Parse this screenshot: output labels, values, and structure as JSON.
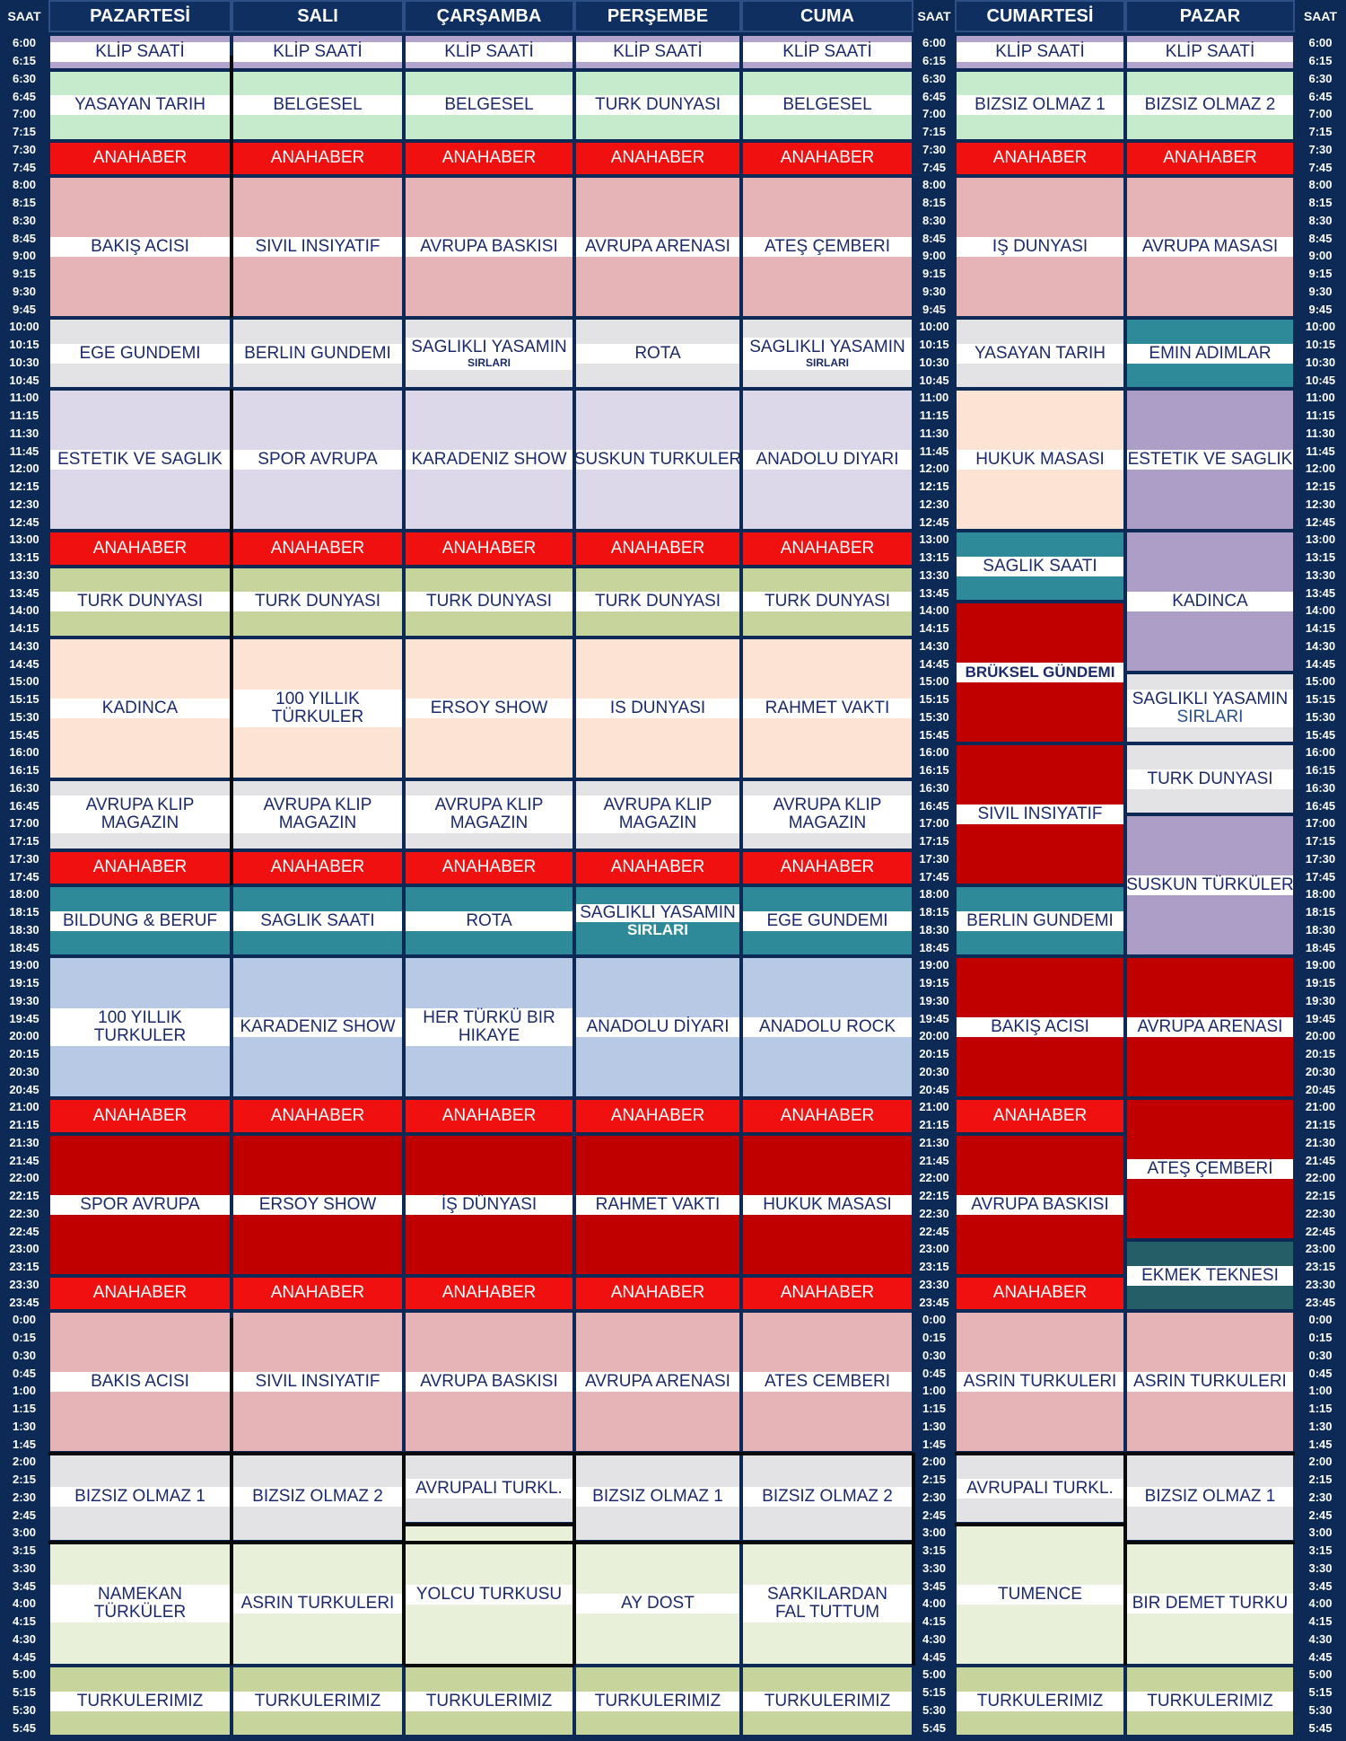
{
  "headers": {
    "saat": "SAAT",
    "days": [
      "PAZARTESİ",
      "SALI",
      "ÇARŞAMBA",
      "PERŞEMBE",
      "CUMA",
      "CUMARTESİ",
      "PAZAR"
    ]
  },
  "times": [
    "6:00",
    "6:15",
    "6:30",
    "6:45",
    "7:00",
    "7:15",
    "7:30",
    "7:45",
    "8:00",
    "8:15",
    "8:30",
    "8:45",
    "9:00",
    "9:15",
    "9:30",
    "9:45",
    "10:00",
    "10:15",
    "10:30",
    "10:45",
    "11:00",
    "11:15",
    "11:30",
    "11:45",
    "12:00",
    "12:15",
    "12:30",
    "12:45",
    "13:00",
    "13:15",
    "13:30",
    "13:45",
    "14:00",
    "14:15",
    "14:30",
    "14:45",
    "15:00",
    "15:15",
    "15:30",
    "15:45",
    "16:00",
    "16:15",
    "16:30",
    "16:45",
    "17:00",
    "17:15",
    "17:30",
    "17:45",
    "18:00",
    "18:15",
    "18:30",
    "18:45",
    "19:00",
    "19:15",
    "19:30",
    "19:45",
    "20:00",
    "20:15",
    "20:30",
    "20:45",
    "21:00",
    "21:15",
    "21:30",
    "21:45",
    "22:00",
    "22:15",
    "22:30",
    "22:45",
    "23:00",
    "23:15",
    "23:30",
    "23:45",
    "0:00",
    "0:15",
    "0:30",
    "0:45",
    "1:00",
    "1:15",
    "1:30",
    "1:45",
    "2:00",
    "2:15",
    "2:30",
    "2:45",
    "3:00",
    "3:15",
    "3:30",
    "3:45",
    "4:00",
    "4:15",
    "4:30",
    "4:45",
    "5:00",
    "5:15",
    "5:30",
    "5:45"
  ],
  "colors": {
    "klip": "#b2a4cc",
    "green": "#c6ebcc",
    "red": "#f01010",
    "pink": "#e6b4b6",
    "grey": "#e3e3e6",
    "lav": "#dcd7e9",
    "peach": "#fce3d3",
    "olive": "#c7d49c",
    "teal": "#2e8a98",
    "blue": "#b7c9e4",
    "dred": "#c00000",
    "cream": "#e9f0d9",
    "purple": "#ad9ec8",
    "dteal": "#1f5f6a",
    "dbteal": "#265e67"
  },
  "schedule": [
    [
      {
        "s": 0,
        "e": 2,
        "c": "klip",
        "t": [
          "KLİP SAATİ"
        ]
      },
      {
        "s": 2,
        "e": 6,
        "c": "green",
        "t": [
          "YASAYAN TARIH"
        ]
      },
      {
        "s": 6,
        "e": 8,
        "c": "red",
        "t": [
          "ANAHABER"
        ]
      },
      {
        "s": 8,
        "e": 16,
        "c": "pink",
        "t": [
          "BAKIŞ ACISI"
        ]
      },
      {
        "s": 16,
        "e": 20,
        "c": "grey",
        "t": [
          "EGE GUNDEMI"
        ]
      },
      {
        "s": 20,
        "e": 28,
        "c": "lav",
        "t": [
          "ESTETIK VE SAGLIK"
        ]
      },
      {
        "s": 28,
        "e": 30,
        "c": "red",
        "t": [
          "ANAHABER"
        ]
      },
      {
        "s": 30,
        "e": 34,
        "c": "olive",
        "t": [
          "TURK DUNYASI"
        ]
      },
      {
        "s": 34,
        "e": 42,
        "c": "peach",
        "t": [
          "KADINCA"
        ]
      },
      {
        "s": 42,
        "e": 46,
        "c": "grey",
        "t": [
          "AVRUPA KLIP",
          "MAGAZIN"
        ]
      },
      {
        "s": 46,
        "e": 48,
        "c": "red",
        "t": [
          "ANAHABER"
        ]
      },
      {
        "s": 48,
        "e": 52,
        "c": "teal",
        "t": [
          "BILDUNG & BERUF"
        ]
      },
      {
        "s": 52,
        "e": 60,
        "c": "blue",
        "t": [
          "100 YILLIK",
          "TURKULER"
        ]
      },
      {
        "s": 60,
        "e": 62,
        "c": "red",
        "t": [
          "ANAHABER"
        ]
      },
      {
        "s": 62,
        "e": 70,
        "c": "dred",
        "t": [
          "SPOR AVRUPA"
        ]
      },
      {
        "s": 70,
        "e": 72,
        "c": "red",
        "t": [
          "ANAHABER"
        ]
      },
      {
        "s": 72,
        "e": 80,
        "c": "pink",
        "t": [
          "BAKIS ACISI"
        ]
      },
      {
        "s": 80,
        "e": 85,
        "c": "grey",
        "t": [
          "BIZSIZ OLMAZ 1"
        ]
      },
      {
        "s": 85,
        "e": 92,
        "c": "cream",
        "t": [
          "NAMEKAN",
          "TÜRKÜLER"
        ]
      },
      {
        "s": 92,
        "e": 96,
        "c": "olive",
        "t": [
          "TURKULERIMIZ"
        ]
      }
    ],
    [
      {
        "s": 0,
        "e": 2,
        "c": "klip",
        "t": [
          "KLİP SAATİ"
        ]
      },
      {
        "s": 2,
        "e": 6,
        "c": "green",
        "t": [
          "BELGESEL"
        ]
      },
      {
        "s": 6,
        "e": 8,
        "c": "red",
        "t": [
          "ANAHABER"
        ]
      },
      {
        "s": 8,
        "e": 16,
        "c": "pink",
        "t": [
          "SIVIL INSIYATIF"
        ]
      },
      {
        "s": 16,
        "e": 20,
        "c": "grey",
        "t": [
          "BERLIN GUNDEMI"
        ]
      },
      {
        "s": 20,
        "e": 28,
        "c": "lav",
        "t": [
          "SPOR AVRUPA"
        ]
      },
      {
        "s": 28,
        "e": 30,
        "c": "red",
        "t": [
          "ANAHABER"
        ]
      },
      {
        "s": 30,
        "e": 34,
        "c": "olive",
        "t": [
          "TURK DUNYASI"
        ]
      },
      {
        "s": 34,
        "e": 42,
        "c": "peach",
        "t": [
          "100 YILLIK",
          "TÜRKULER"
        ]
      },
      {
        "s": 42,
        "e": 46,
        "c": "grey",
        "t": [
          "AVRUPA KLIP",
          "MAGAZIN"
        ]
      },
      {
        "s": 46,
        "e": 48,
        "c": "red",
        "t": [
          "ANAHABER"
        ]
      },
      {
        "s": 48,
        "e": 52,
        "c": "teal",
        "t": [
          "SAGLIK SAATI"
        ]
      },
      {
        "s": 52,
        "e": 60,
        "c": "blue",
        "t": [
          "KARADENIZ SHOW"
        ]
      },
      {
        "s": 60,
        "e": 62,
        "c": "red",
        "t": [
          "ANAHABER"
        ]
      },
      {
        "s": 62,
        "e": 70,
        "c": "dred",
        "t": [
          "ERSOY SHOW"
        ]
      },
      {
        "s": 70,
        "e": 72,
        "c": "red",
        "t": [
          "ANAHABER"
        ]
      },
      {
        "s": 72,
        "e": 80,
        "c": "pink",
        "t": [
          "SIVIL INSIYATIF"
        ]
      },
      {
        "s": 80,
        "e": 85,
        "c": "grey",
        "t": [
          "BIZSIZ OLMAZ 2"
        ]
      },
      {
        "s": 85,
        "e": 92,
        "c": "cream",
        "t": [
          "ASRIN TURKULERI"
        ]
      },
      {
        "s": 92,
        "e": 96,
        "c": "olive",
        "t": [
          "TURKULERIMIZ"
        ]
      }
    ],
    [
      {
        "s": 0,
        "e": 2,
        "c": "klip",
        "t": [
          "KLİP SAATİ"
        ]
      },
      {
        "s": 2,
        "e": 6,
        "c": "green",
        "t": [
          "BELGESEL"
        ]
      },
      {
        "s": 6,
        "e": 8,
        "c": "red",
        "t": [
          "ANAHABER"
        ]
      },
      {
        "s": 8,
        "e": 16,
        "c": "pink",
        "t": [
          "AVRUPA BASKISI"
        ]
      },
      {
        "s": 16,
        "e": 20,
        "c": "grey",
        "t": [
          "SAGLIKLI YASAMIN",
          "SIRLARI"
        ]
      },
      {
        "s": 20,
        "e": 28,
        "c": "lav",
        "t": [
          "KARADENIZ SHOW"
        ]
      },
      {
        "s": 28,
        "e": 30,
        "c": "red",
        "t": [
          "ANAHABER"
        ]
      },
      {
        "s": 30,
        "e": 34,
        "c": "olive",
        "t": [
          "TURK DUNYASI"
        ]
      },
      {
        "s": 34,
        "e": 42,
        "c": "peach",
        "t": [
          "ERSOY SHOW"
        ]
      },
      {
        "s": 42,
        "e": 46,
        "c": "grey",
        "t": [
          "AVRUPA KLIP",
          "MAGAZIN"
        ]
      },
      {
        "s": 46,
        "e": 48,
        "c": "red",
        "t": [
          "ANAHABER"
        ]
      },
      {
        "s": 48,
        "e": 52,
        "c": "teal",
        "t": [
          "ROTA"
        ]
      },
      {
        "s": 52,
        "e": 60,
        "c": "blue",
        "t": [
          "HER TÜRKÜ BIR",
          "HIKAYE"
        ]
      },
      {
        "s": 60,
        "e": 62,
        "c": "red",
        "t": [
          "ANAHABER"
        ]
      },
      {
        "s": 62,
        "e": 70,
        "c": "dred",
        "t": [
          "İŞ DÜNYASI"
        ]
      },
      {
        "s": 70,
        "e": 72,
        "c": "red",
        "t": [
          "ANAHABER"
        ]
      },
      {
        "s": 72,
        "e": 80,
        "c": "pink",
        "t": [
          "AVRUPA BASKISI"
        ]
      },
      {
        "s": 80,
        "e": 84,
        "c": "grey",
        "t": [
          "AVRUPALI TURKL."
        ]
      },
      {
        "s": 84,
        "e": 92,
        "c": "cream",
        "t": [
          "YOLCU TURKUSU"
        ]
      },
      {
        "s": 92,
        "e": 96,
        "c": "olive",
        "t": [
          "TURKULERIMIZ"
        ]
      }
    ],
    [
      {
        "s": 0,
        "e": 2,
        "c": "klip",
        "t": [
          "KLİP SAATİ"
        ]
      },
      {
        "s": 2,
        "e": 6,
        "c": "green",
        "t": [
          "TURK DUNYASI"
        ]
      },
      {
        "s": 6,
        "e": 8,
        "c": "red",
        "t": [
          "ANAHABER"
        ]
      },
      {
        "s": 8,
        "e": 16,
        "c": "pink",
        "t": [
          "AVRUPA ARENASI"
        ]
      },
      {
        "s": 16,
        "e": 20,
        "c": "grey",
        "t": [
          "ROTA"
        ]
      },
      {
        "s": 20,
        "e": 28,
        "c": "lav",
        "t": [
          "SUSKUN TURKULER"
        ]
      },
      {
        "s": 28,
        "e": 30,
        "c": "red",
        "t": [
          "ANAHABER"
        ]
      },
      {
        "s": 30,
        "e": 34,
        "c": "olive",
        "t": [
          "TURK DUNYASI"
        ]
      },
      {
        "s": 34,
        "e": 42,
        "c": "peach",
        "t": [
          "IS DUNYASI"
        ]
      },
      {
        "s": 42,
        "e": 46,
        "c": "grey",
        "t": [
          "AVRUPA KLIP",
          "MAGAZIN"
        ]
      },
      {
        "s": 46,
        "e": 48,
        "c": "red",
        "t": [
          "ANAHABER"
        ]
      },
      {
        "s": 48,
        "e": 52,
        "c": "teal",
        "t": [
          "SAGLIKLI YASAMIN",
          "SIRLARI"
        ]
      },
      {
        "s": 52,
        "e": 60,
        "c": "blue",
        "t": [
          "ANADOLU DİYARI"
        ]
      },
      {
        "s": 60,
        "e": 62,
        "c": "red",
        "t": [
          "ANAHABER"
        ]
      },
      {
        "s": 62,
        "e": 70,
        "c": "dred",
        "t": [
          "RAHMET VAKTI"
        ]
      },
      {
        "s": 70,
        "e": 72,
        "c": "red",
        "t": [
          "ANAHABER"
        ]
      },
      {
        "s": 72,
        "e": 80,
        "c": "pink",
        "t": [
          "AVRUPA ARENASI"
        ]
      },
      {
        "s": 80,
        "e": 85,
        "c": "grey",
        "t": [
          "BIZSIZ OLMAZ 1"
        ]
      },
      {
        "s": 85,
        "e": 92,
        "c": "cream",
        "t": [
          "AY DOST"
        ]
      },
      {
        "s": 92,
        "e": 96,
        "c": "olive",
        "t": [
          "TURKULERIMIZ"
        ]
      }
    ],
    [
      {
        "s": 0,
        "e": 2,
        "c": "klip",
        "t": [
          "KLİP SAATİ"
        ]
      },
      {
        "s": 2,
        "e": 6,
        "c": "green",
        "t": [
          "BELGESEL"
        ]
      },
      {
        "s": 6,
        "e": 8,
        "c": "red",
        "t": [
          "ANAHABER"
        ]
      },
      {
        "s": 8,
        "e": 16,
        "c": "pink",
        "t": [
          "ATEŞ ÇEMBERI"
        ]
      },
      {
        "s": 16,
        "e": 20,
        "c": "grey",
        "t": [
          "SAGLIKLI YASAMIN",
          "SIRLARI"
        ]
      },
      {
        "s": 20,
        "e": 28,
        "c": "lav",
        "t": [
          "ANADOLU DIYARI"
        ]
      },
      {
        "s": 28,
        "e": 30,
        "c": "red",
        "t": [
          "ANAHABER"
        ]
      },
      {
        "s": 30,
        "e": 34,
        "c": "olive",
        "t": [
          "TURK DUNYASI"
        ]
      },
      {
        "s": 34,
        "e": 42,
        "c": "peach",
        "t": [
          "RAHMET VAKTI"
        ]
      },
      {
        "s": 42,
        "e": 46,
        "c": "grey",
        "t": [
          "AVRUPA KLIP",
          "MAGAZIN"
        ]
      },
      {
        "s": 46,
        "e": 48,
        "c": "red",
        "t": [
          "ANAHABER"
        ]
      },
      {
        "s": 48,
        "e": 52,
        "c": "teal",
        "t": [
          "EGE GUNDEMI"
        ]
      },
      {
        "s": 52,
        "e": 60,
        "c": "blue",
        "t": [
          "ANADOLU ROCK"
        ]
      },
      {
        "s": 60,
        "e": 62,
        "c": "red",
        "t": [
          "ANAHABER"
        ]
      },
      {
        "s": 62,
        "e": 70,
        "c": "dred",
        "t": [
          "HUKUK MASASI"
        ]
      },
      {
        "s": 70,
        "e": 72,
        "c": "red",
        "t": [
          "ANAHABER"
        ]
      },
      {
        "s": 72,
        "e": 80,
        "c": "pink",
        "t": [
          "ATES CEMBERI"
        ]
      },
      {
        "s": 80,
        "e": 85,
        "c": "grey",
        "t": [
          "BIZSIZ OLMAZ 2"
        ]
      },
      {
        "s": 85,
        "e": 92,
        "c": "cream",
        "t": [
          "SARKILARDAN",
          "FAL TUTTUM"
        ]
      },
      {
        "s": 92,
        "e": 96,
        "c": "olive",
        "t": [
          "TURKULERIMIZ"
        ]
      }
    ],
    [
      {
        "s": 0,
        "e": 2,
        "c": "klip",
        "t": [
          "KLİP SAATİ"
        ]
      },
      {
        "s": 2,
        "e": 6,
        "c": "green",
        "t": [
          "BIZSIZ OLMAZ 1"
        ]
      },
      {
        "s": 6,
        "e": 8,
        "c": "red",
        "t": [
          "ANAHABER"
        ]
      },
      {
        "s": 8,
        "e": 16,
        "c": "pink",
        "t": [
          "IŞ DUNYASI"
        ]
      },
      {
        "s": 16,
        "e": 20,
        "c": "grey",
        "t": [
          "YASAYAN TARIH"
        ]
      },
      {
        "s": 20,
        "e": 28,
        "c": "peach",
        "t": [
          "HUKUK MASASI"
        ]
      },
      {
        "s": 28,
        "e": 32,
        "c": "teal",
        "t": [
          "SAGLIK SAATI"
        ]
      },
      {
        "s": 32,
        "e": 40,
        "c": "dred",
        "t": [
          "BRÜKSEL GÜNDEMI"
        ],
        "bold": true
      },
      {
        "s": 40,
        "e": 48,
        "c": "dred",
        "t": [
          "SIVIL INSIYATIF"
        ]
      },
      {
        "s": 48,
        "e": 52,
        "c": "teal",
        "t": [
          "BERLIN GUNDEMI"
        ]
      },
      {
        "s": 52,
        "e": 60,
        "c": "dred",
        "t": [
          "BAKIŞ ACISI"
        ]
      },
      {
        "s": 60,
        "e": 62,
        "c": "red",
        "t": [
          "ANAHABER"
        ]
      },
      {
        "s": 62,
        "e": 70,
        "c": "dred",
        "t": [
          "AVRUPA BASKISI"
        ]
      },
      {
        "s": 70,
        "e": 72,
        "c": "red",
        "t": [
          "ANAHABER"
        ]
      },
      {
        "s": 72,
        "e": 80,
        "c": "pink",
        "t": [
          "ASRIN TURKULERI"
        ]
      },
      {
        "s": 80,
        "e": 84,
        "c": "grey",
        "t": [
          "AVRUPALI TURKL."
        ]
      },
      {
        "s": 84,
        "e": 92,
        "c": "cream",
        "t": [
          "TUMENCE"
        ]
      },
      {
        "s": 92,
        "e": 96,
        "c": "olive",
        "t": [
          "TURKULERIMIZ"
        ]
      }
    ],
    [
      {
        "s": 0,
        "e": 2,
        "c": "klip",
        "t": [
          "KLİP SAATİ"
        ]
      },
      {
        "s": 2,
        "e": 6,
        "c": "green",
        "t": [
          "BIZSIZ OLMAZ 2"
        ]
      },
      {
        "s": 6,
        "e": 8,
        "c": "red",
        "t": [
          "ANAHABER"
        ]
      },
      {
        "s": 8,
        "e": 16,
        "c": "pink",
        "t": [
          "AVRUPA MASASI"
        ]
      },
      {
        "s": 16,
        "e": 20,
        "c": "teal",
        "t": [
          "EMIN ADIMLAR"
        ]
      },
      {
        "s": 20,
        "e": 28,
        "c": "purple",
        "t": [
          "ESTETIK VE SAGLIK"
        ]
      },
      {
        "s": 28,
        "e": 36,
        "c": "purple",
        "t": [
          "KADINCA"
        ]
      },
      {
        "s": 36,
        "e": 40,
        "c": "grey",
        "t": [
          "SAGLIKLI YASAMIN",
          "SIRLARI"
        ],
        "big2": true
      },
      {
        "s": 40,
        "e": 44,
        "c": "grey",
        "t": [
          "TURK DUNYASI"
        ]
      },
      {
        "s": 44,
        "e": 52,
        "c": "purple",
        "t": [
          "SUSKUN TÜRKÜLER"
        ]
      },
      {
        "s": 52,
        "e": 60,
        "c": "dred",
        "t": [
          "AVRUPA ARENASI"
        ]
      },
      {
        "s": 60,
        "e": 68,
        "c": "dred",
        "t": [
          "ATEŞ ÇEMBERİ"
        ]
      },
      {
        "s": 68,
        "e": 72,
        "c": "dbteal",
        "t": [
          "EKMEK TEKNESI"
        ]
      },
      {
        "s": 72,
        "e": 80,
        "c": "pink",
        "t": [
          "ASRIN TURKULERI"
        ]
      },
      {
        "s": 80,
        "e": 85,
        "c": "grey",
        "t": [
          "BIZSIZ OLMAZ 1"
        ]
      },
      {
        "s": 85,
        "e": 92,
        "c": "cream",
        "t": [
          "BIR DEMET TURKU"
        ]
      },
      {
        "s": 92,
        "e": 96,
        "c": "olive",
        "t": [
          "TURKULERIMIZ"
        ]
      }
    ]
  ]
}
